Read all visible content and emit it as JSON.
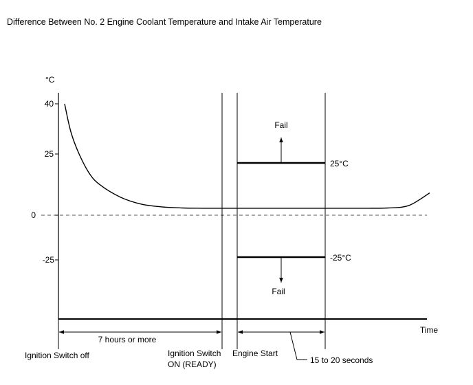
{
  "chart_data": {
    "type": "line",
    "title": "Difference Between No. 2 Engine Coolant Temperature and Intake Air Temperature",
    "ylabel": "°C",
    "xlabel": "Time",
    "ylim": [
      -60,
      45
    ],
    "yticks": [
      40,
      25,
      0,
      -25
    ],
    "grid": false,
    "series": [
      {
        "x": [
          0.3,
          0.6,
          1,
          1.5,
          2,
          3,
          4,
          5,
          6,
          7,
          8,
          9,
          10,
          11,
          12,
          13,
          14,
          15,
          16,
          17,
          18
        ],
        "y": [
          40,
          30,
          22,
          15,
          11,
          6.5,
          4,
          3,
          2.6,
          2.5,
          2.5,
          2.5,
          2.5,
          2.5,
          2.5,
          2.5,
          2.5,
          2.5,
          2.6,
          3.5,
          8
        ]
      }
    ],
    "thresholds": [
      {
        "value": 25,
        "label": "25°C",
        "annotation": "Fail"
      },
      {
        "value": -25,
        "label": "-25°C",
        "annotation": "Fail"
      }
    ],
    "events": [
      {
        "label": "Ignition Switch off"
      },
      {
        "label": "Ignition Switch ON (READY)"
      },
      {
        "label": "Engine Start"
      }
    ],
    "intervals": [
      {
        "label": "7 hours or more"
      },
      {
        "label": "15 to 20 seconds"
      }
    ]
  }
}
